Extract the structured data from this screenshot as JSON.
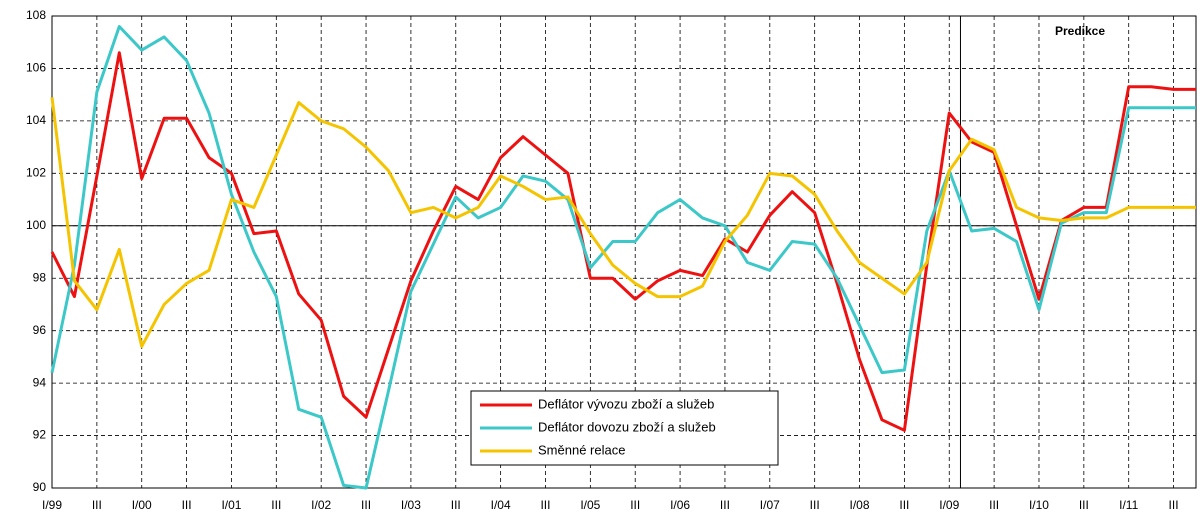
{
  "chart_data": {
    "type": "line",
    "annotation": "Predikce",
    "categories": [
      "I/99",
      null,
      "III",
      null,
      "I/00",
      null,
      "III",
      null,
      "I/01",
      null,
      "III",
      null,
      "I/02",
      null,
      "III",
      null,
      "I/03",
      null,
      "III",
      null,
      "I/04",
      null,
      "III",
      null,
      "I/05",
      null,
      "III",
      null,
      "I/06",
      null,
      "III",
      null,
      "I/07",
      null,
      "III",
      null,
      "I/08",
      null,
      "III",
      null,
      "I/09",
      null,
      "III",
      null,
      "I/10",
      null,
      "III",
      null,
      "I/11",
      null,
      "III",
      null
    ],
    "series": [
      {
        "name": "Deflátor vývozu zboží a služeb",
        "color": "#ee1111",
        "values": [
          99.0,
          97.3,
          101.9,
          106.6,
          101.8,
          104.1,
          104.1,
          102.6,
          102.0,
          99.7,
          99.8,
          97.4,
          96.4,
          93.5,
          92.7,
          95.3,
          97.9,
          99.8,
          101.5,
          101.0,
          102.6,
          103.4,
          102.7,
          102.0,
          98.0,
          98.0,
          97.2,
          97.9,
          98.3,
          98.1,
          99.5,
          99.0,
          100.4,
          101.3,
          100.5,
          97.8,
          94.9,
          92.6,
          92.2,
          98.5,
          104.3,
          103.2,
          102.8,
          100.0,
          97.2,
          100.2,
          100.7,
          100.7,
          105.3,
          105.3,
          105.2,
          105.2
        ]
      },
      {
        "name": "Deflátor dovozu zboží a služeb",
        "color": "#3cc8c8",
        "values": [
          94.4,
          98.5,
          105.1,
          107.6,
          106.7,
          107.2,
          106.3,
          104.3,
          101.2,
          99.0,
          97.3,
          93.0,
          92.7,
          90.1,
          90.0,
          93.7,
          97.5,
          99.3,
          101.1,
          100.3,
          100.7,
          101.9,
          101.7,
          101.0,
          98.4,
          99.4,
          99.4,
          100.5,
          101.0,
          100.3,
          100.0,
          98.6,
          98.3,
          99.4,
          99.3,
          98.0,
          96.2,
          94.4,
          94.5,
          99.8,
          102.1,
          99.8,
          99.9,
          99.4,
          96.8,
          100.1,
          100.5,
          100.5,
          104.5,
          104.5,
          104.5,
          104.5
        ]
      },
      {
        "name": "Směnné relace",
        "color": "#f5c400",
        "values": [
          104.9,
          97.9,
          96.8,
          99.1,
          95.4,
          97.0,
          97.8,
          98.3,
          101.0,
          100.7,
          102.7,
          104.7,
          104.0,
          103.7,
          103.0,
          102.1,
          100.5,
          100.7,
          100.3,
          100.7,
          101.9,
          101.5,
          101.0,
          101.1,
          99.7,
          98.5,
          97.8,
          97.3,
          97.3,
          97.7,
          99.4,
          100.4,
          102.0,
          101.9,
          101.2,
          99.8,
          98.6,
          98.0,
          97.4,
          98.6,
          102.1,
          103.3,
          102.9,
          100.7,
          100.3,
          100.2,
          100.3,
          100.3,
          100.7,
          100.7,
          100.7,
          100.7
        ]
      }
    ],
    "ylim": [
      90,
      108
    ],
    "yticks": [
      90,
      92,
      94,
      96,
      98,
      100,
      102,
      104,
      106,
      108
    ],
    "grid": true,
    "reference_line": 100
  }
}
